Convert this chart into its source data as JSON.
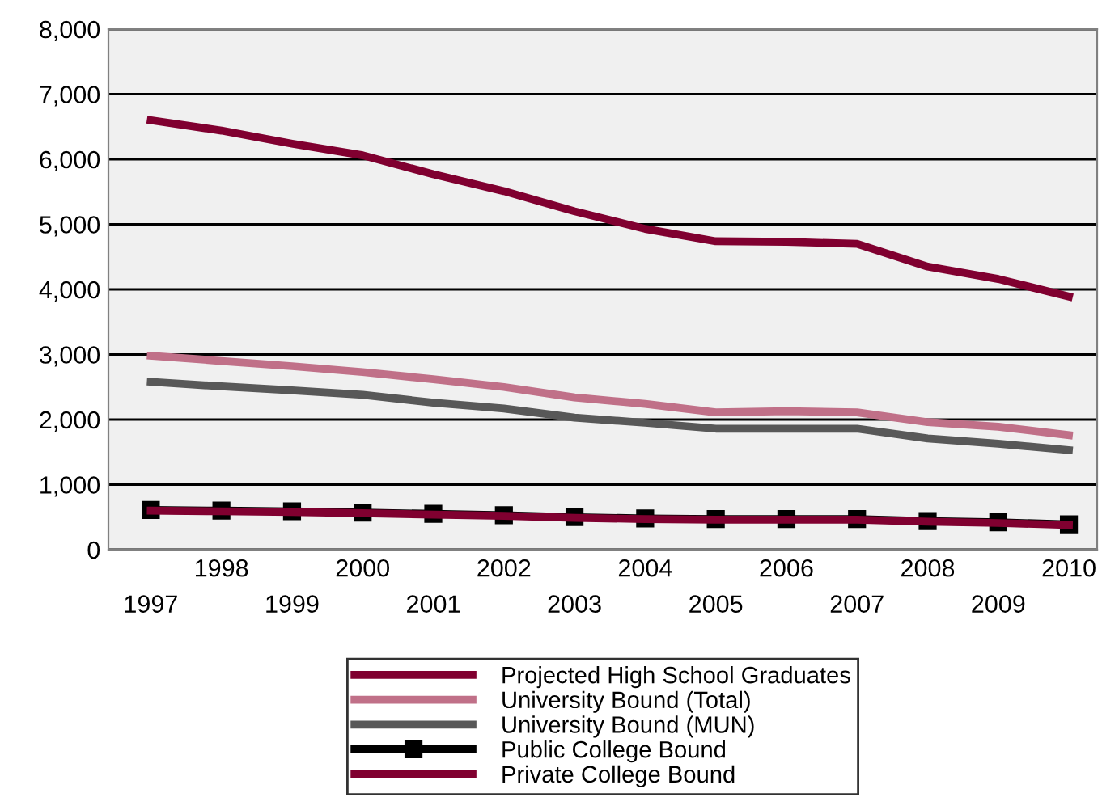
{
  "chart_data": {
    "type": "line",
    "categories": [
      "1997",
      "1998",
      "1999",
      "2000",
      "2001",
      "2002",
      "2003",
      "2004",
      "2005",
      "2006",
      "2007",
      "2008",
      "2009",
      "2010"
    ],
    "series": [
      {
        "name": "Projected High School Graduates",
        "color": "#800030",
        "marker": "none",
        "values": [
          6600,
          6440,
          6240,
          6060,
          5770,
          5510,
          5200,
          4930,
          4740,
          4730,
          4700,
          4350,
          4160,
          3890
        ]
      },
      {
        "name": "University Bound (Total)",
        "color": "#c07088",
        "marker": "none",
        "values": [
          2980,
          2900,
          2820,
          2730,
          2620,
          2500,
          2340,
          2240,
          2110,
          2130,
          2110,
          1960,
          1890,
          1760
        ]
      },
      {
        "name": "University Bound (MUN)",
        "color": "#585858",
        "marker": "none",
        "values": [
          2580,
          2510,
          2450,
          2380,
          2260,
          2170,
          2030,
          1950,
          1860,
          1860,
          1860,
          1710,
          1630,
          1530
        ]
      },
      {
        "name": "Public College Bound",
        "color": "#000000",
        "marker": "square",
        "values": [
          610,
          600,
          590,
          570,
          550,
          530,
          500,
          480,
          470,
          470,
          470,
          440,
          420,
          390
        ]
      },
      {
        "name": "Private College Bound",
        "color": "#800030",
        "marker": "none",
        "values": [
          600,
          590,
          580,
          560,
          540,
          520,
          490,
          470,
          460,
          460,
          460,
          430,
          410,
          380
        ]
      }
    ],
    "ylim": [
      0,
      8000
    ],
    "yticks": [
      {
        "value": 0,
        "label": "0"
      },
      {
        "value": 1000,
        "label": "1,000"
      },
      {
        "value": 2000,
        "label": "2,000"
      },
      {
        "value": 3000,
        "label": "3,000"
      },
      {
        "value": 4000,
        "label": "4,000"
      },
      {
        "value": 5000,
        "label": "5,000"
      },
      {
        "value": 6000,
        "label": "6,000"
      },
      {
        "value": 7000,
        "label": "7,000"
      },
      {
        "value": 8000,
        "label": "8,000"
      }
    ],
    "grid": "y",
    "legend": "bottom",
    "line_style": "solid"
  }
}
